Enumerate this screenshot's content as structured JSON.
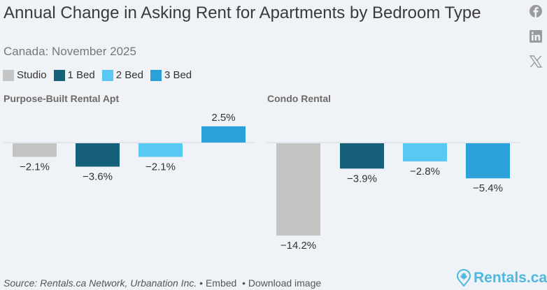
{
  "header": {
    "title": "Annual Change in Asking Rent for Apartments by Bedroom Type",
    "subtitle": "Canada: November 2025"
  },
  "social": [
    "facebook-icon",
    "linkedin-icon",
    "x-icon"
  ],
  "footer": {
    "source": "Source: Rentals.ca Network, Urbanation Inc.",
    "embed": "Embed",
    "download": "Download image",
    "separator": "•",
    "logo_text": "Rentals.ca"
  },
  "colors": {
    "studio": "#c4c4c4",
    "one_bed": "#16607a",
    "two_bed": "#5ac8f5",
    "three_bed": "#2ba1da",
    "logo": "#4fb8dc"
  },
  "chart_data": [
    {
      "type": "bar",
      "title": "Purpose-Built Rental Apt",
      "categories": [
        "Studio",
        "1 Bed",
        "2 Bed",
        "3 Bed"
      ],
      "values": [
        -2.1,
        -3.6,
        -2.1,
        2.5
      ],
      "labels": [
        "−2.1%",
        "−3.6%",
        "−2.1%",
        "2.5%"
      ],
      "legend": [
        "Studio",
        "1 Bed",
        "2 Bed",
        "3 Bed"
      ],
      "legend_position": "top-left",
      "grid": false
    },
    {
      "type": "bar",
      "title": "Condo Rental",
      "categories": [
        "Studio",
        "1 Bed",
        "2 Bed",
        "3 Bed"
      ],
      "values": [
        -14.2,
        -3.9,
        -2.8,
        -5.4
      ],
      "labels": [
        "−14.2%",
        "−3.9%",
        "−2.8%",
        "−5.4%"
      ],
      "grid": false
    }
  ]
}
